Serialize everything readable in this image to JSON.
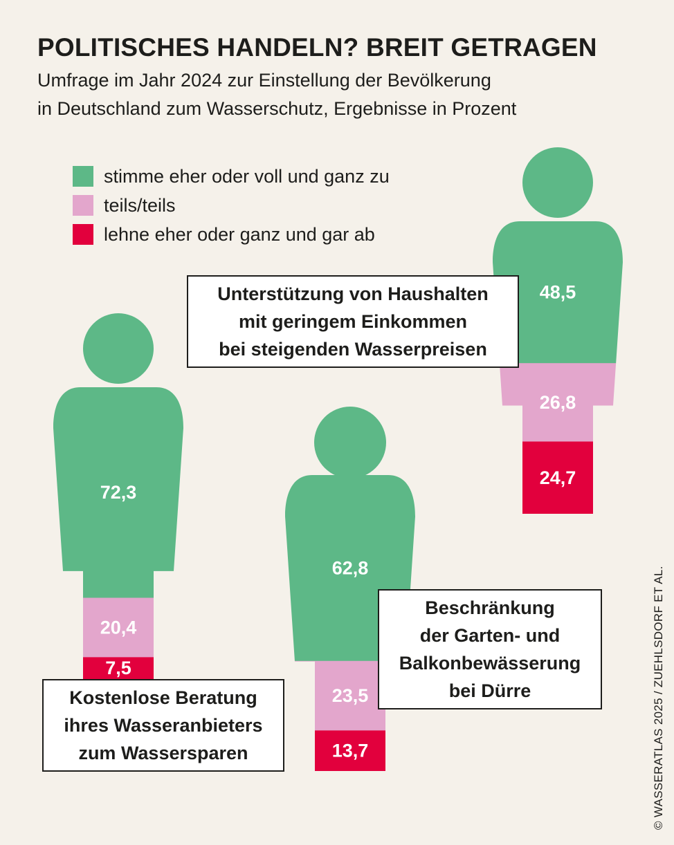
{
  "title": "POLITISCHES HANDELN? BREIT GETRAGEN",
  "subtitle_line1": "Umfrage im Jahr 2024 zur Einstellung der Bevölkerung",
  "subtitle_line2": "in Deutschland zum Wasserschutz, Ergebnisse in Prozent",
  "legend": [
    {
      "label": "stimme eher oder voll und ganz zu",
      "color": "#5db887"
    },
    {
      "label": "teils/teils",
      "color": "#e3a6cc"
    },
    {
      "label": "lehne eher oder ganz und gar ab",
      "color": "#e2003d"
    }
  ],
  "credit": "© WASSERATLAS 2025 / ZUEHLSDORF ET AL.",
  "chart_data": {
    "type": "bar",
    "stacked": true,
    "unit": "Prozent",
    "categories": [
      "Kostenlose Beratung ihres Wasseranbieters zum Wassersparen",
      "Beschränkung der Garten- und Balkonbewässerung bei Dürre",
      "Unterstützung von Haushalten mit geringem Einkommen bei steigenden Wasserpreisen"
    ],
    "label_lines": [
      [
        "Kostenlose Beratung",
        "ihres Wasseranbieters",
        "zum Wassersparen"
      ],
      [
        "Beschränkung",
        "der Garten- und",
        "Balkonbewässerung",
        "bei Dürre"
      ],
      [
        "Unterstützung von Haushalten",
        "mit geringem Einkommen",
        "bei steigenden Wasserpreisen"
      ]
    ],
    "series": [
      {
        "name": "stimme eher oder voll und ganz zu",
        "values": [
          72.3,
          62.8,
          48.5
        ],
        "labels": [
          "72,3",
          "62,8",
          "48,5"
        ]
      },
      {
        "name": "teils/teils",
        "values": [
          20.4,
          23.5,
          26.8
        ],
        "labels": [
          "20,4",
          "23,5",
          "26,8"
        ]
      },
      {
        "name": "lehne eher oder ganz und gar ab",
        "values": [
          7.5,
          13.7,
          24.7
        ],
        "labels": [
          "7,5",
          "13,7",
          "24,7"
        ]
      }
    ],
    "colors": [
      "#5db887",
      "#e3a6cc",
      "#e2003d"
    ],
    "value_label_color": "#ffffff"
  }
}
